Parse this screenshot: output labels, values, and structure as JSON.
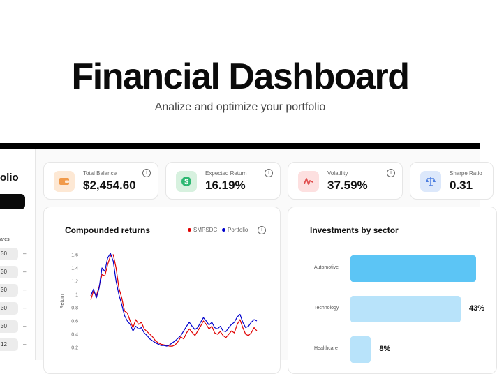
{
  "hero": {
    "title": "Financial Dashboard",
    "subtitle": "Analize and optimize your portfolio"
  },
  "sidebar": {
    "title_fragment": "olio",
    "section_label": "ares",
    "rows": [
      {
        "value": "30",
        "dash": "–"
      },
      {
        "value": "30",
        "dash": "–"
      },
      {
        "value": "30",
        "dash": "–"
      },
      {
        "value": "30",
        "dash": "–"
      },
      {
        "value": "30",
        "dash": "–"
      },
      {
        "value": "12",
        "dash": "–"
      }
    ]
  },
  "stats": [
    {
      "label": "Total Balance",
      "value": "$2,454.60",
      "icon": "wallet-icon",
      "icon_bg": "#fde8d4",
      "icon_color": "#f19a4a"
    },
    {
      "label": "Expected Return",
      "value": "16.19%",
      "icon": "dollar-icon",
      "icon_bg": "#d7f1df",
      "icon_color": "#2eb872"
    },
    {
      "label": "Volatility",
      "value": "37.59%",
      "icon": "volatility-icon",
      "icon_bg": "#fde0e0",
      "icon_color": "#e04f4f"
    },
    {
      "label": "Sharpe Ratio",
      "value": "0.31",
      "icon": "scale-icon",
      "icon_bg": "#dce8fb",
      "icon_color": "#4c7ee0"
    }
  ],
  "returns_chart": {
    "title": "Compounded returns",
    "legend": [
      {
        "name": "SMPSDC",
        "color": "#e00000"
      },
      {
        "name": "Portfolio",
        "color": "#0000cc"
      }
    ]
  },
  "sector_chart": {
    "title": "Investments by sector"
  },
  "chart_data": [
    {
      "type": "line",
      "title": "Compounded returns",
      "ylabel": "Return",
      "xlabel": "",
      "y_ticks": [
        "1.6",
        "1.4",
        "1.2",
        "1",
        "0.8",
        "0.6",
        "0.4",
        "0.2"
      ],
      "ylim": [
        0.2,
        1.6
      ],
      "grid": false,
      "legend_position": "top-right",
      "x": [
        0,
        1,
        2,
        3,
        4,
        5,
        6,
        7,
        8,
        9,
        10,
        11,
        12,
        13,
        14,
        15,
        16,
        17,
        18,
        19,
        20,
        21,
        22,
        23,
        24,
        25,
        26,
        27,
        28,
        29,
        30,
        31,
        32,
        33,
        34,
        35,
        36,
        37,
        38,
        39,
        40,
        41,
        42,
        43,
        44,
        45,
        46,
        47,
        48,
        49,
        50,
        51,
        52,
        53,
        54,
        55,
        56,
        57,
        58,
        59
      ],
      "series": [
        {
          "name": "SMPSDC",
          "color": "#e00000",
          "values": [
            0.92,
            1.05,
            0.98,
            1.12,
            1.3,
            1.28,
            1.45,
            1.58,
            1.6,
            1.4,
            1.1,
            0.95,
            0.75,
            0.72,
            0.6,
            0.5,
            0.62,
            0.55,
            0.58,
            0.48,
            0.44,
            0.4,
            0.36,
            0.3,
            0.27,
            0.25,
            0.24,
            0.23,
            0.22,
            0.22,
            0.24,
            0.29,
            0.36,
            0.33,
            0.42,
            0.48,
            0.43,
            0.38,
            0.45,
            0.52,
            0.6,
            0.55,
            0.48,
            0.52,
            0.42,
            0.4,
            0.44,
            0.38,
            0.35,
            0.4,
            0.45,
            0.42,
            0.55,
            0.62,
            0.5,
            0.4,
            0.38,
            0.42,
            0.5,
            0.45
          ]
        },
        {
          "name": "Portfolio",
          "color": "#0000cc",
          "values": [
            0.98,
            1.08,
            0.95,
            1.1,
            1.4,
            1.35,
            1.55,
            1.62,
            1.5,
            1.2,
            1.0,
            0.85,
            0.68,
            0.6,
            0.55,
            0.45,
            0.52,
            0.48,
            0.5,
            0.42,
            0.38,
            0.33,
            0.3,
            0.27,
            0.25,
            0.23,
            0.23,
            0.22,
            0.24,
            0.27,
            0.3,
            0.34,
            0.38,
            0.45,
            0.52,
            0.58,
            0.52,
            0.47,
            0.5,
            0.58,
            0.65,
            0.6,
            0.54,
            0.58,
            0.5,
            0.48,
            0.52,
            0.45,
            0.44,
            0.5,
            0.55,
            0.58,
            0.66,
            0.7,
            0.58,
            0.5,
            0.52,
            0.58,
            0.62,
            0.6
          ]
        }
      ]
    },
    {
      "type": "bar",
      "orientation": "horizontal",
      "title": "Investments by sector",
      "categories": [
        "Automotive",
        "Technology",
        "Healthcare"
      ],
      "values": [
        49,
        43,
        8
      ],
      "value_labels": [
        "",
        "43%",
        "8%"
      ],
      "colors": [
        "#5cc5f5",
        "#b8e3fa",
        "#b8e3fa"
      ]
    }
  ]
}
